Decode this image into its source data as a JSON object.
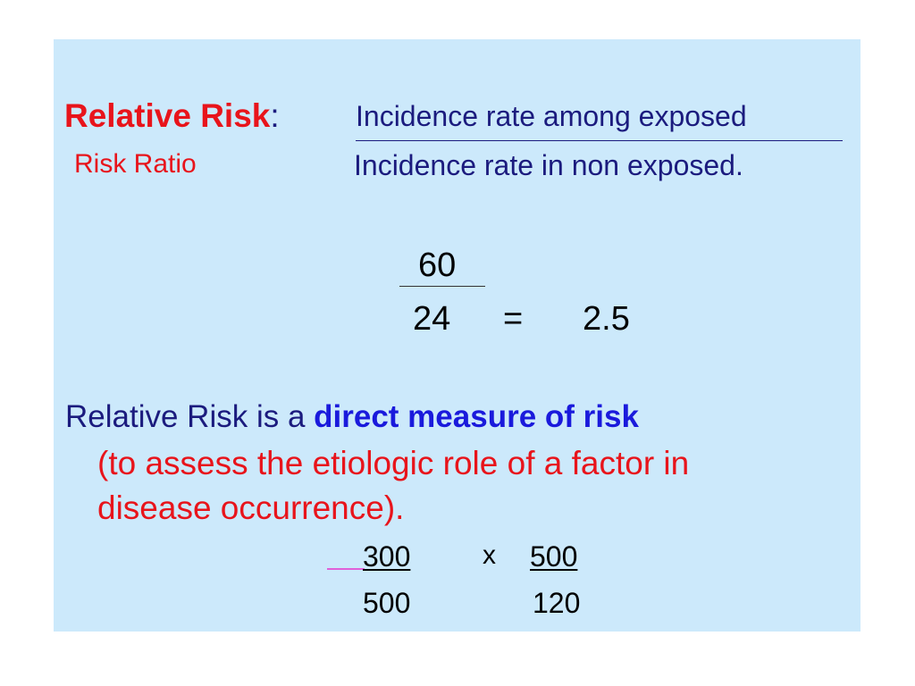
{
  "formula": {
    "title": "Relative Risk",
    "colon": ":",
    "subtitle": "Risk Ratio",
    "numerator": "Incidence rate among exposed",
    "denominator": "Incidence rate in non exposed."
  },
  "example": {
    "numerator": "60",
    "denominator": "24",
    "equals": "=",
    "result": "2.5"
  },
  "statement": {
    "prefix": "Relative Risk is a ",
    "emphasis": "direct measure of risk",
    "detail_line1": "(to assess the etiologic role of a factor in",
    "detail_line2": "disease occurrence)."
  },
  "odds_calc": {
    "left_numerator": "300",
    "left_denominator": "500",
    "times": "x",
    "right_numerator": "500",
    "right_denominator": "120"
  },
  "colors": {
    "background": "#cce9fb",
    "red": "#e8141b",
    "navy": "#1b1b7e",
    "blue": "#1a1adc"
  }
}
